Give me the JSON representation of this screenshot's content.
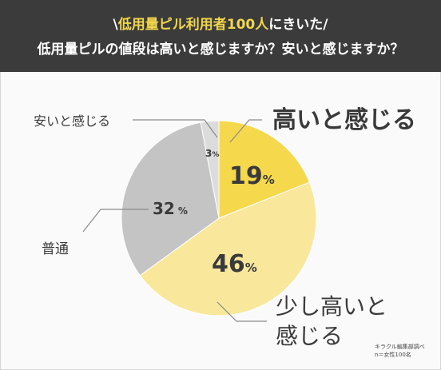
{
  "header": {
    "title_prefix": "\\",
    "title_highlight": "低用量ピル利用者100人",
    "title_suffix": "にきいた/",
    "question": "低用量ピルの値段は高いと感じますか？安いと感じますか？"
  },
  "chart_data": {
    "type": "pie",
    "slices": [
      {
        "label": "高いと感じる",
        "value": 19,
        "value_text": "19",
        "unit": "%",
        "color": "#f6d84d"
      },
      {
        "label": "少し高いと感じる",
        "value": 46,
        "value_text": "46",
        "unit": "%",
        "color": "#f9e79b"
      },
      {
        "label": "普通",
        "value": 32,
        "value_text": "32",
        "unit": "%",
        "color": "#c4c4c4"
      },
      {
        "label": "安いと感じる",
        "value": 3,
        "value_text": "3",
        "unit": "%",
        "color": "#dcdcdc"
      }
    ],
    "start_angle_deg": 0,
    "direction": "clockwise"
  },
  "footnote": {
    "line1": "キラクル編集部調べ",
    "line2": "n＝女性100名"
  }
}
